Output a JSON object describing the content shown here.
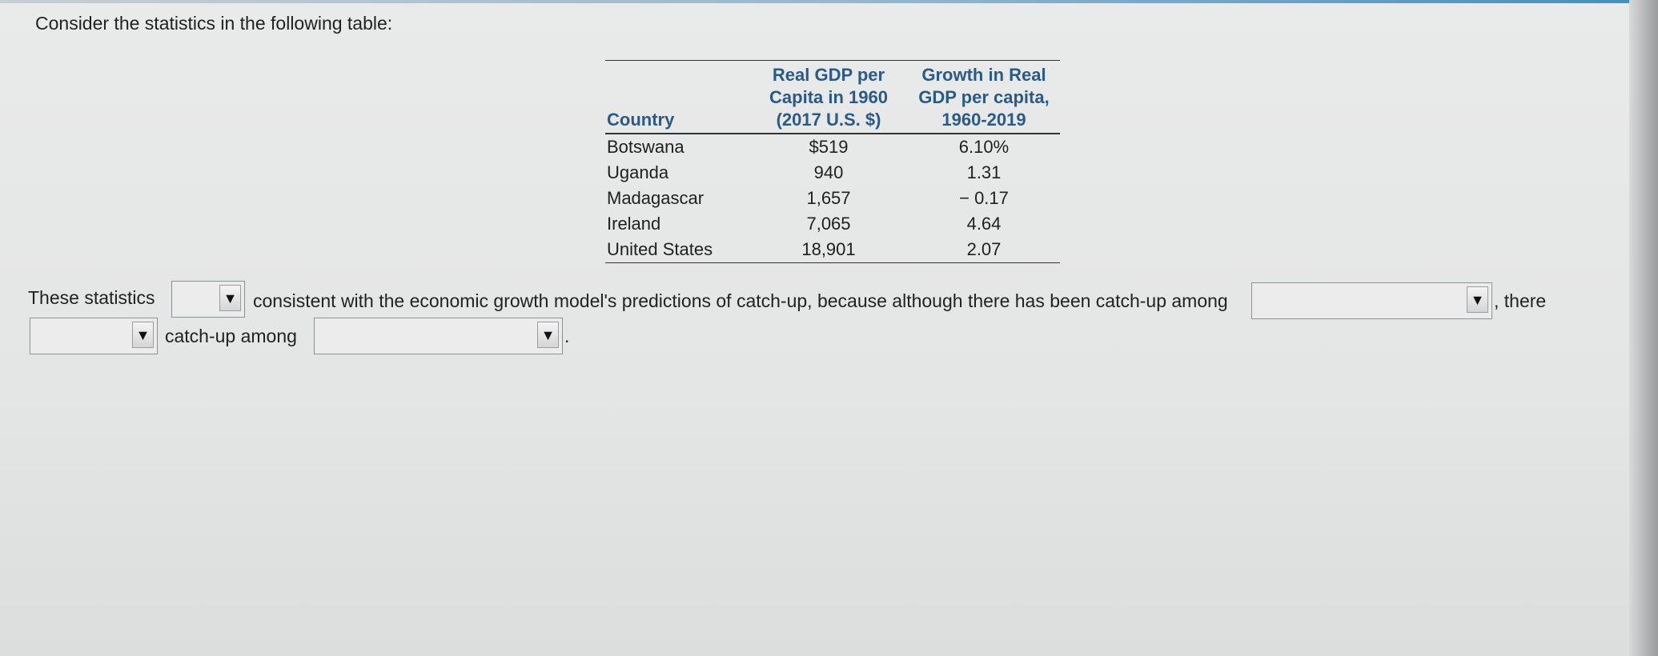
{
  "prompt": "Consider the statistics in the following table:",
  "table": {
    "headers": {
      "country": "Country",
      "gdp_line1": "Real GDP per",
      "gdp_line2": "Capita in 1960",
      "gdp_line3": "(2017 U.S. $)",
      "growth_line1": "Growth in Real",
      "growth_line2": "GDP per capita,",
      "growth_line3": "1960-2019"
    },
    "rows": [
      {
        "country": "Botswana",
        "gdp": "$519",
        "growth": "6.10%"
      },
      {
        "country": "Uganda",
        "gdp": "940",
        "growth": "1.31"
      },
      {
        "country": "Madagascar",
        "gdp": "1,657",
        "growth": "− 0.17"
      },
      {
        "country": "Ireland",
        "gdp": "7,065",
        "growth": "4.64"
      },
      {
        "country": "United States",
        "gdp": "18,901",
        "growth": "2.07"
      }
    ]
  },
  "sentence": {
    "part1": "These statistics",
    "part2": "consistent with the economic growth model's predictions of catch-up, because although there has been catch-up among",
    "part3": ", there",
    "part4": "catch-up among",
    "part5": "."
  },
  "dropdowns": {
    "are_arent": {
      "value": ""
    },
    "group1": {
      "value": ""
    },
    "has_hasnt": {
      "value": ""
    },
    "group2": {
      "value": ""
    },
    "arrow_glyph": "▼"
  }
}
